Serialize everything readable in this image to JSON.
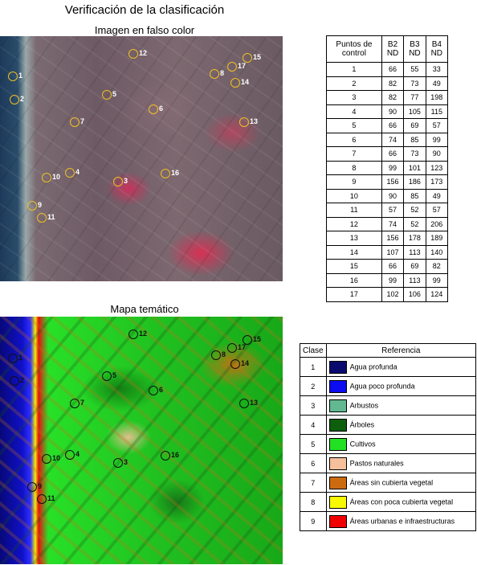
{
  "title": "Verificación de la clasificación",
  "image_title": "Imagen en falso color",
  "map_title": "Mapa temático",
  "points_table": {
    "headers": [
      "Puntos de control",
      "B2 ND",
      "B3 ND",
      "B4 ND"
    ],
    "rows": [
      [
        "1",
        "66",
        "55",
        "33"
      ],
      [
        "2",
        "82",
        "73",
        "49"
      ],
      [
        "3",
        "82",
        "77",
        "198"
      ],
      [
        "4",
        "90",
        "105",
        "115"
      ],
      [
        "5",
        "66",
        "69",
        "57"
      ],
      [
        "6",
        "74",
        "85",
        "99"
      ],
      [
        "7",
        "66",
        "73",
        "90"
      ],
      [
        "8",
        "99",
        "101",
        "123"
      ],
      [
        "9",
        "156",
        "186",
        "173"
      ],
      [
        "10",
        "90",
        "85",
        "49"
      ],
      [
        "11",
        "57",
        "52",
        "57"
      ],
      [
        "12",
        "74",
        "52",
        "206"
      ],
      [
        "13",
        "156",
        "178",
        "189"
      ],
      [
        "14",
        "107",
        "113",
        "140"
      ],
      [
        "15",
        "66",
        "69",
        "82"
      ],
      [
        "16",
        "99",
        "113",
        "99"
      ],
      [
        "17",
        "102",
        "106",
        "124"
      ]
    ]
  },
  "legend_table": {
    "headers": [
      "Clase",
      "Referencia"
    ],
    "rows": [
      {
        "clase": "1",
        "ref": "Agua profunda",
        "color": "#0a0a6e"
      },
      {
        "clase": "2",
        "ref": "Agua poco profunda",
        "color": "#0c0cf0"
      },
      {
        "clase": "3",
        "ref": "Arbustos",
        "color": "#62b890"
      },
      {
        "clase": "4",
        "ref": "Árboles",
        "color": "#0d5e0d"
      },
      {
        "clase": "5",
        "ref": "Cultivos",
        "color": "#22e022"
      },
      {
        "clase": "6",
        "ref": "Pastos naturales",
        "color": "#f5c09a"
      },
      {
        "clase": "7",
        "ref": "Áreas sin cubierta vegetal",
        "color": "#cc6a10"
      },
      {
        "clase": "8",
        "ref": "Áreas con poca cubierta vegetal",
        "color": "#f8f800"
      },
      {
        "clase": "9",
        "ref": "Áreas urbanas e infraestructuras",
        "color": "#f00000"
      }
    ]
  },
  "control_points": [
    "1",
    "2",
    "3",
    "4",
    "5",
    "6",
    "7",
    "8",
    "9",
    "10",
    "11",
    "12",
    "13",
    "14",
    "15",
    "16",
    "17"
  ]
}
